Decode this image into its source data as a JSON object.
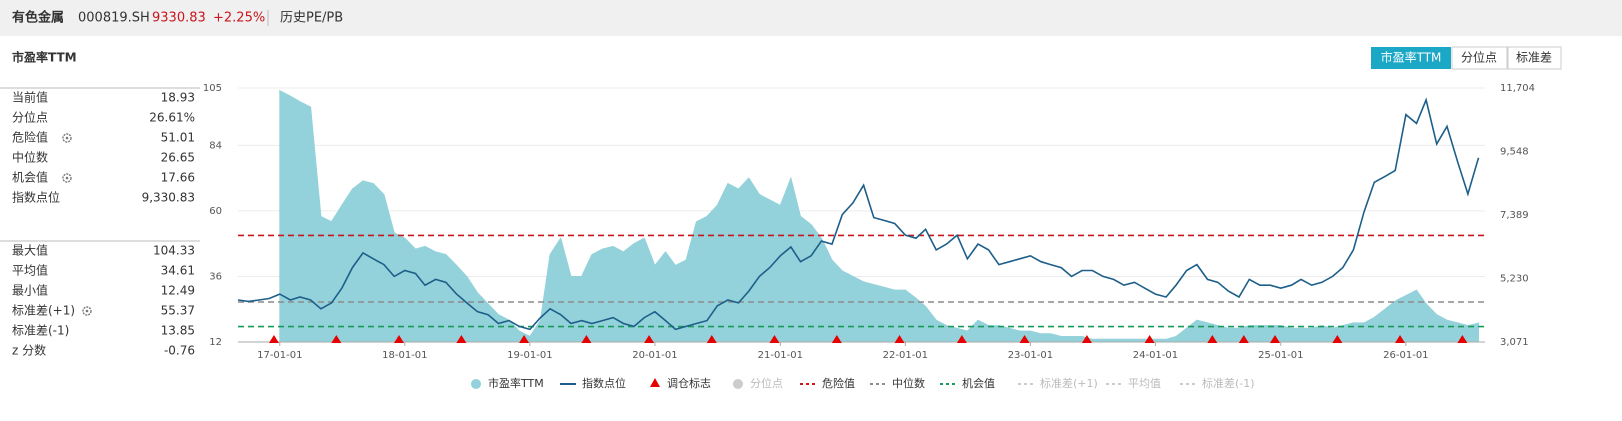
{
  "header": {
    "name": "有色金属",
    "code": "000819.SH",
    "price": "9330.83",
    "change": "+2.25%",
    "tab": "历史PE/PB"
  },
  "panel_title": "市盈率TTM",
  "buttons": [
    "市盈率TTM",
    "分位点",
    "标准差"
  ],
  "stats": [
    [
      {
        "label": "当前值",
        "value": "18.93"
      },
      {
        "label": "分位点",
        "value": "26.61%"
      },
      {
        "label": "危险值",
        "value": "51.01"
      },
      {
        "label": "中位数",
        "value": "26.65"
      },
      {
        "label": "机会值",
        "value": "17.66"
      },
      {
        "label": "指数点位",
        "value": "9,330.83"
      }
    ],
    [
      {
        "label": "最大值",
        "value": "104.33"
      },
      {
        "label": "平均值",
        "value": "34.61"
      },
      {
        "label": "最小值",
        "value": "12.49"
      },
      {
        "label": "标准差(+1)",
        "value": "55.37"
      },
      {
        "label": "标准差(-1)",
        "value": "13.85"
      },
      {
        "label": "z 分数",
        "value": "-0.76"
      }
    ]
  ],
  "chart_data": {
    "type": "line",
    "x": [
      "16-09-01",
      "16-10-01",
      "16-11-01",
      "16-12-01",
      "17-01-01",
      "17-02-01",
      "17-03-01",
      "17-04-01",
      "17-05-01",
      "17-06-01",
      "17-07-01",
      "17-08-01",
      "17-09-01",
      "17-10-01",
      "17-11-01",
      "17-12-01",
      "18-01-01",
      "18-02-01",
      "18-03-01",
      "18-04-01",
      "18-05-01",
      "18-06-01",
      "18-07-01",
      "18-08-01",
      "18-09-01",
      "18-10-01",
      "18-11-01",
      "18-12-01",
      "19-01-01",
      "19-02-01",
      "19-03-01",
      "19-04-01",
      "19-05-01",
      "19-06-01",
      "19-07-01",
      "19-08-01",
      "19-09-01",
      "19-10-01",
      "19-11-01",
      "19-12-01",
      "20-01-01",
      "20-02-01",
      "20-03-01",
      "20-04-01",
      "20-05-01",
      "20-06-01",
      "20-07-01",
      "20-08-01",
      "20-09-01",
      "20-10-01",
      "20-11-01",
      "20-12-01",
      "21-01-01",
      "21-02-01",
      "21-03-01",
      "21-04-01",
      "21-05-01",
      "21-06-01",
      "21-07-01",
      "21-08-01",
      "21-09-01",
      "21-10-01",
      "21-11-01",
      "21-12-01",
      "22-01-01",
      "22-02-01",
      "22-03-01",
      "22-04-01",
      "22-05-01",
      "22-06-01",
      "22-07-01",
      "22-08-01",
      "22-09-01",
      "22-10-01",
      "22-11-01",
      "22-12-01",
      "23-01-01",
      "23-02-01",
      "23-03-01",
      "23-04-01",
      "23-05-01",
      "23-06-01",
      "23-07-01",
      "23-08-01",
      "23-09-01",
      "23-10-01",
      "23-11-01",
      "23-12-01",
      "24-01-01",
      "24-02-01",
      "24-03-01",
      "24-04-01",
      "24-05-01",
      "24-06-01",
      "24-07-01",
      "24-08-01",
      "24-09-01",
      "24-10-01",
      "24-11-01",
      "24-12-01",
      "25-01-01",
      "25-02-01",
      "25-03-01",
      "25-04-01",
      "25-05-01",
      "25-06-01",
      "25-07-01",
      "25-08-01",
      "25-09-01",
      "25-10-01",
      "25-11-01",
      "25-12-01",
      "26-01-01",
      "26-02-01",
      "26-03-01",
      "26-04-01",
      "26-05-01",
      "26-06-01",
      "26-07-01",
      "26-08-01"
    ],
    "series": [
      {
        "name": "市盈率TTM",
        "color": "#93d2da",
        "style": "area",
        "values": [
          null,
          null,
          null,
          null,
          104,
          102,
          100,
          98,
          58,
          56,
          62,
          68,
          71,
          70,
          66,
          52,
          50,
          46,
          47,
          45,
          44,
          40,
          36,
          30,
          26,
          22,
          20,
          16,
          14,
          20,
          44,
          50,
          36,
          36,
          44,
          46,
          47,
          45,
          48,
          50,
          40,
          45,
          40,
          42,
          56,
          58,
          62,
          70,
          68,
          72,
          66,
          64,
          62,
          72,
          58,
          55,
          50,
          42,
          38,
          36,
          34,
          33,
          32,
          31,
          31,
          28,
          25,
          20,
          18,
          17,
          16,
          20,
          18,
          18,
          17,
          16,
          16,
          15,
          15,
          14,
          14,
          14,
          13,
          13,
          13,
          13,
          13,
          13,
          13,
          13,
          14,
          17,
          20,
          19,
          18,
          17,
          17,
          18,
          18,
          18,
          18,
          17,
          17,
          17,
          18,
          17,
          18,
          19,
          19,
          21,
          24,
          27,
          29,
          31,
          26,
          22,
          20,
          19,
          18,
          18.93
        ]
      },
      {
        "name": "指数点位",
        "color": "#1d5f8a",
        "style": "line",
        "axis": "y2",
        "values": [
          4500,
          4450,
          4500,
          4550,
          4700,
          4500,
          4600,
          4500,
          4200,
          4400,
          4900,
          5600,
          6100,
          5900,
          5700,
          5300,
          5500,
          5400,
          5000,
          5200,
          5100,
          4700,
          4400,
          4100,
          4000,
          3700,
          3800,
          3600,
          3500,
          3900,
          4200,
          4000,
          3700,
          3800,
          3700,
          3800,
          3900,
          3700,
          3600,
          3900,
          4100,
          3800,
          3500,
          3600,
          3700,
          3800,
          4300,
          4500,
          4400,
          4800,
          5300,
          5600,
          6000,
          6300,
          5800,
          6000,
          6500,
          6400,
          7400,
          7800,
          8400,
          7300,
          7200,
          7100,
          6700,
          6600,
          6900,
          6200,
          6400,
          6700,
          5900,
          6400,
          6200,
          5700,
          5800,
          5900,
          6000,
          5800,
          5700,
          5600,
          5300,
          5500,
          5500,
          5300,
          5200,
          5000,
          5100,
          4900,
          4700,
          4600,
          5000,
          5500,
          5700,
          5200,
          5100,
          4800,
          4600,
          5200,
          5000,
          5000,
          4900,
          5000,
          5200,
          5000,
          5100,
          5300,
          5600,
          6200,
          7500,
          8500,
          8700,
          8900,
          10800,
          10500,
          11300,
          9800,
          10400,
          9200,
          8100,
          9330.83
        ]
      }
    ],
    "markers": {
      "name": "调仓标志",
      "color": "#e60000",
      "x": [
        "16-12-15",
        "17-06-15",
        "17-12-15",
        "18-06-15",
        "18-12-15",
        "19-06-15",
        "19-12-15",
        "20-06-15",
        "20-12-15",
        "21-06-15",
        "21-12-15",
        "22-06-15",
        "22-12-15",
        "23-06-15",
        "23-12-15",
        "24-06-15",
        "24-09-15",
        "24-12-15",
        "25-06-15",
        "25-12-15",
        "26-06-15"
      ]
    },
    "reference_lines": [
      {
        "name": "危险值",
        "value": 51.01,
        "color": "#c8161d"
      },
      {
        "name": "中位数",
        "value": 26.65,
        "color": "#8c8c8c"
      },
      {
        "name": "机会值",
        "value": 17.66,
        "color": "#1a9a5a"
      }
    ],
    "inactive_legend": [
      "分位点",
      "标准差(+1)",
      "平均值",
      "标准差(-1)"
    ],
    "xlim": [
      "16-09-01",
      "26-08-20"
    ],
    "xticks": [
      "17-01-01",
      "18-01-01",
      "19-01-01",
      "20-01-01",
      "21-01-01",
      "22-01-01",
      "23-01-01",
      "24-01-01",
      "25-01-01",
      "26-01-01"
    ],
    "ylim": [
      12,
      105
    ],
    "yticks": [
      12,
      36,
      60,
      84,
      105
    ],
    "y2lim": [
      3071,
      11704
    ],
    "y2ticks": [
      {
        "value": 3071,
        "label": "3,071"
      },
      {
        "value": 5230,
        "label": "5,230"
      },
      {
        "value": 7389,
        "label": "7,389"
      },
      {
        "value": 9548,
        "label": "9,548"
      },
      {
        "value": 11704,
        "label": "11,704"
      }
    ],
    "grid": true
  }
}
